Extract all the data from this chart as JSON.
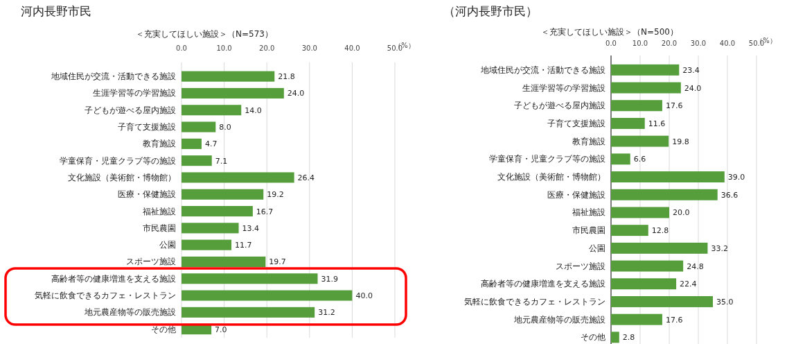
{
  "chart_data": [
    {
      "type": "bar",
      "orientation": "horizontal",
      "title": "河内長野市民",
      "subtitle": "＜充実してほしい施設＞（N=573）",
      "xlabel": "（%）",
      "categories": [
        "地域住民が交流・活動できる施設",
        "生涯学習等の学習施設",
        "子どもが遊べる屋内施設",
        "子育て支援施設",
        "教育施設",
        "学童保育・児童クラブ等の施設",
        "文化施設（美術館・博物館）",
        "医療・保健施設",
        "福祉施設",
        "市民農園",
        "公園",
        "スポーツ施設",
        "高齢者等の健康増進を支える施設",
        "気軽に飲食できるカフェ・レストラン",
        "地元農産物等の販売施設",
        "その他"
      ],
      "values": [
        21.8,
        24.0,
        14.0,
        8.0,
        4.7,
        7.1,
        26.4,
        19.2,
        16.7,
        13.4,
        11.7,
        19.7,
        31.9,
        40.0,
        31.2,
        7.0
      ],
      "value_labels": [
        "21.8",
        "24.0",
        "14.0",
        "8.0",
        "4.7",
        "7.1",
        "26.4",
        "19.2",
        "16.7",
        "13.4",
        "11.7",
        "19.7",
        "31.9",
        "40.0",
        "31.2",
        "7.0"
      ],
      "color": "#559e3b",
      "xlim": [
        0,
        50
      ],
      "xticks": [
        {
          "value": 0,
          "label": "0.0"
        },
        {
          "value": 10,
          "label": "10.0"
        },
        {
          "value": 20,
          "label": "20.0"
        },
        {
          "value": 30,
          "label": "30.0"
        },
        {
          "value": 40,
          "label": "40.0"
        },
        {
          "value": 50,
          "label": "50.0"
        }
      ],
      "grid": "x"
    },
    {
      "type": "bar",
      "orientation": "horizontal",
      "title": "（河内長野市民）",
      "subtitle": "＜充実してほしい施設＞（N=500）",
      "xlabel": "（%）",
      "categories": [
        "地域住民が交流・活動できる施設",
        "生涯学習等の学習施設",
        "子どもが遊べる屋内施設",
        "子育て支援施設",
        "教育施設",
        "学童保育・児童クラブ等の施設",
        "文化施設（美術館・博物館）",
        "医療・保健施設",
        "福祉施設",
        "市民農園",
        "公園",
        "スポーツ施設",
        "高齢者等の健康増進を支える施設",
        "気軽に飲食できるカフェ・レストラン",
        "地元農産物等の販売施設",
        "その他"
      ],
      "values": [
        23.4,
        24.0,
        17.6,
        11.6,
        19.8,
        6.6,
        39.0,
        36.6,
        20.0,
        12.8,
        33.2,
        24.8,
        22.4,
        35.0,
        17.6,
        2.8
      ],
      "value_labels": [
        "23.4",
        "24.0",
        "17.6",
        "11.6",
        "19.8",
        "6.6",
        "39.0",
        "36.6",
        "20.0",
        "12.8",
        "33.2",
        "24.8",
        "22.4",
        "35.0",
        "17.6",
        "2.8"
      ],
      "color": "#559e3b",
      "xlim": [
        0,
        50
      ],
      "xticks": [
        {
          "value": 0,
          "label": "0.0"
        },
        {
          "value": 10,
          "label": "10.0"
        },
        {
          "value": 20,
          "label": "20.0"
        },
        {
          "value": 30,
          "label": "30.0"
        },
        {
          "value": 40,
          "label": "40.0"
        },
        {
          "value": 50,
          "label": "50.0"
        }
      ],
      "grid": "x"
    }
  ]
}
